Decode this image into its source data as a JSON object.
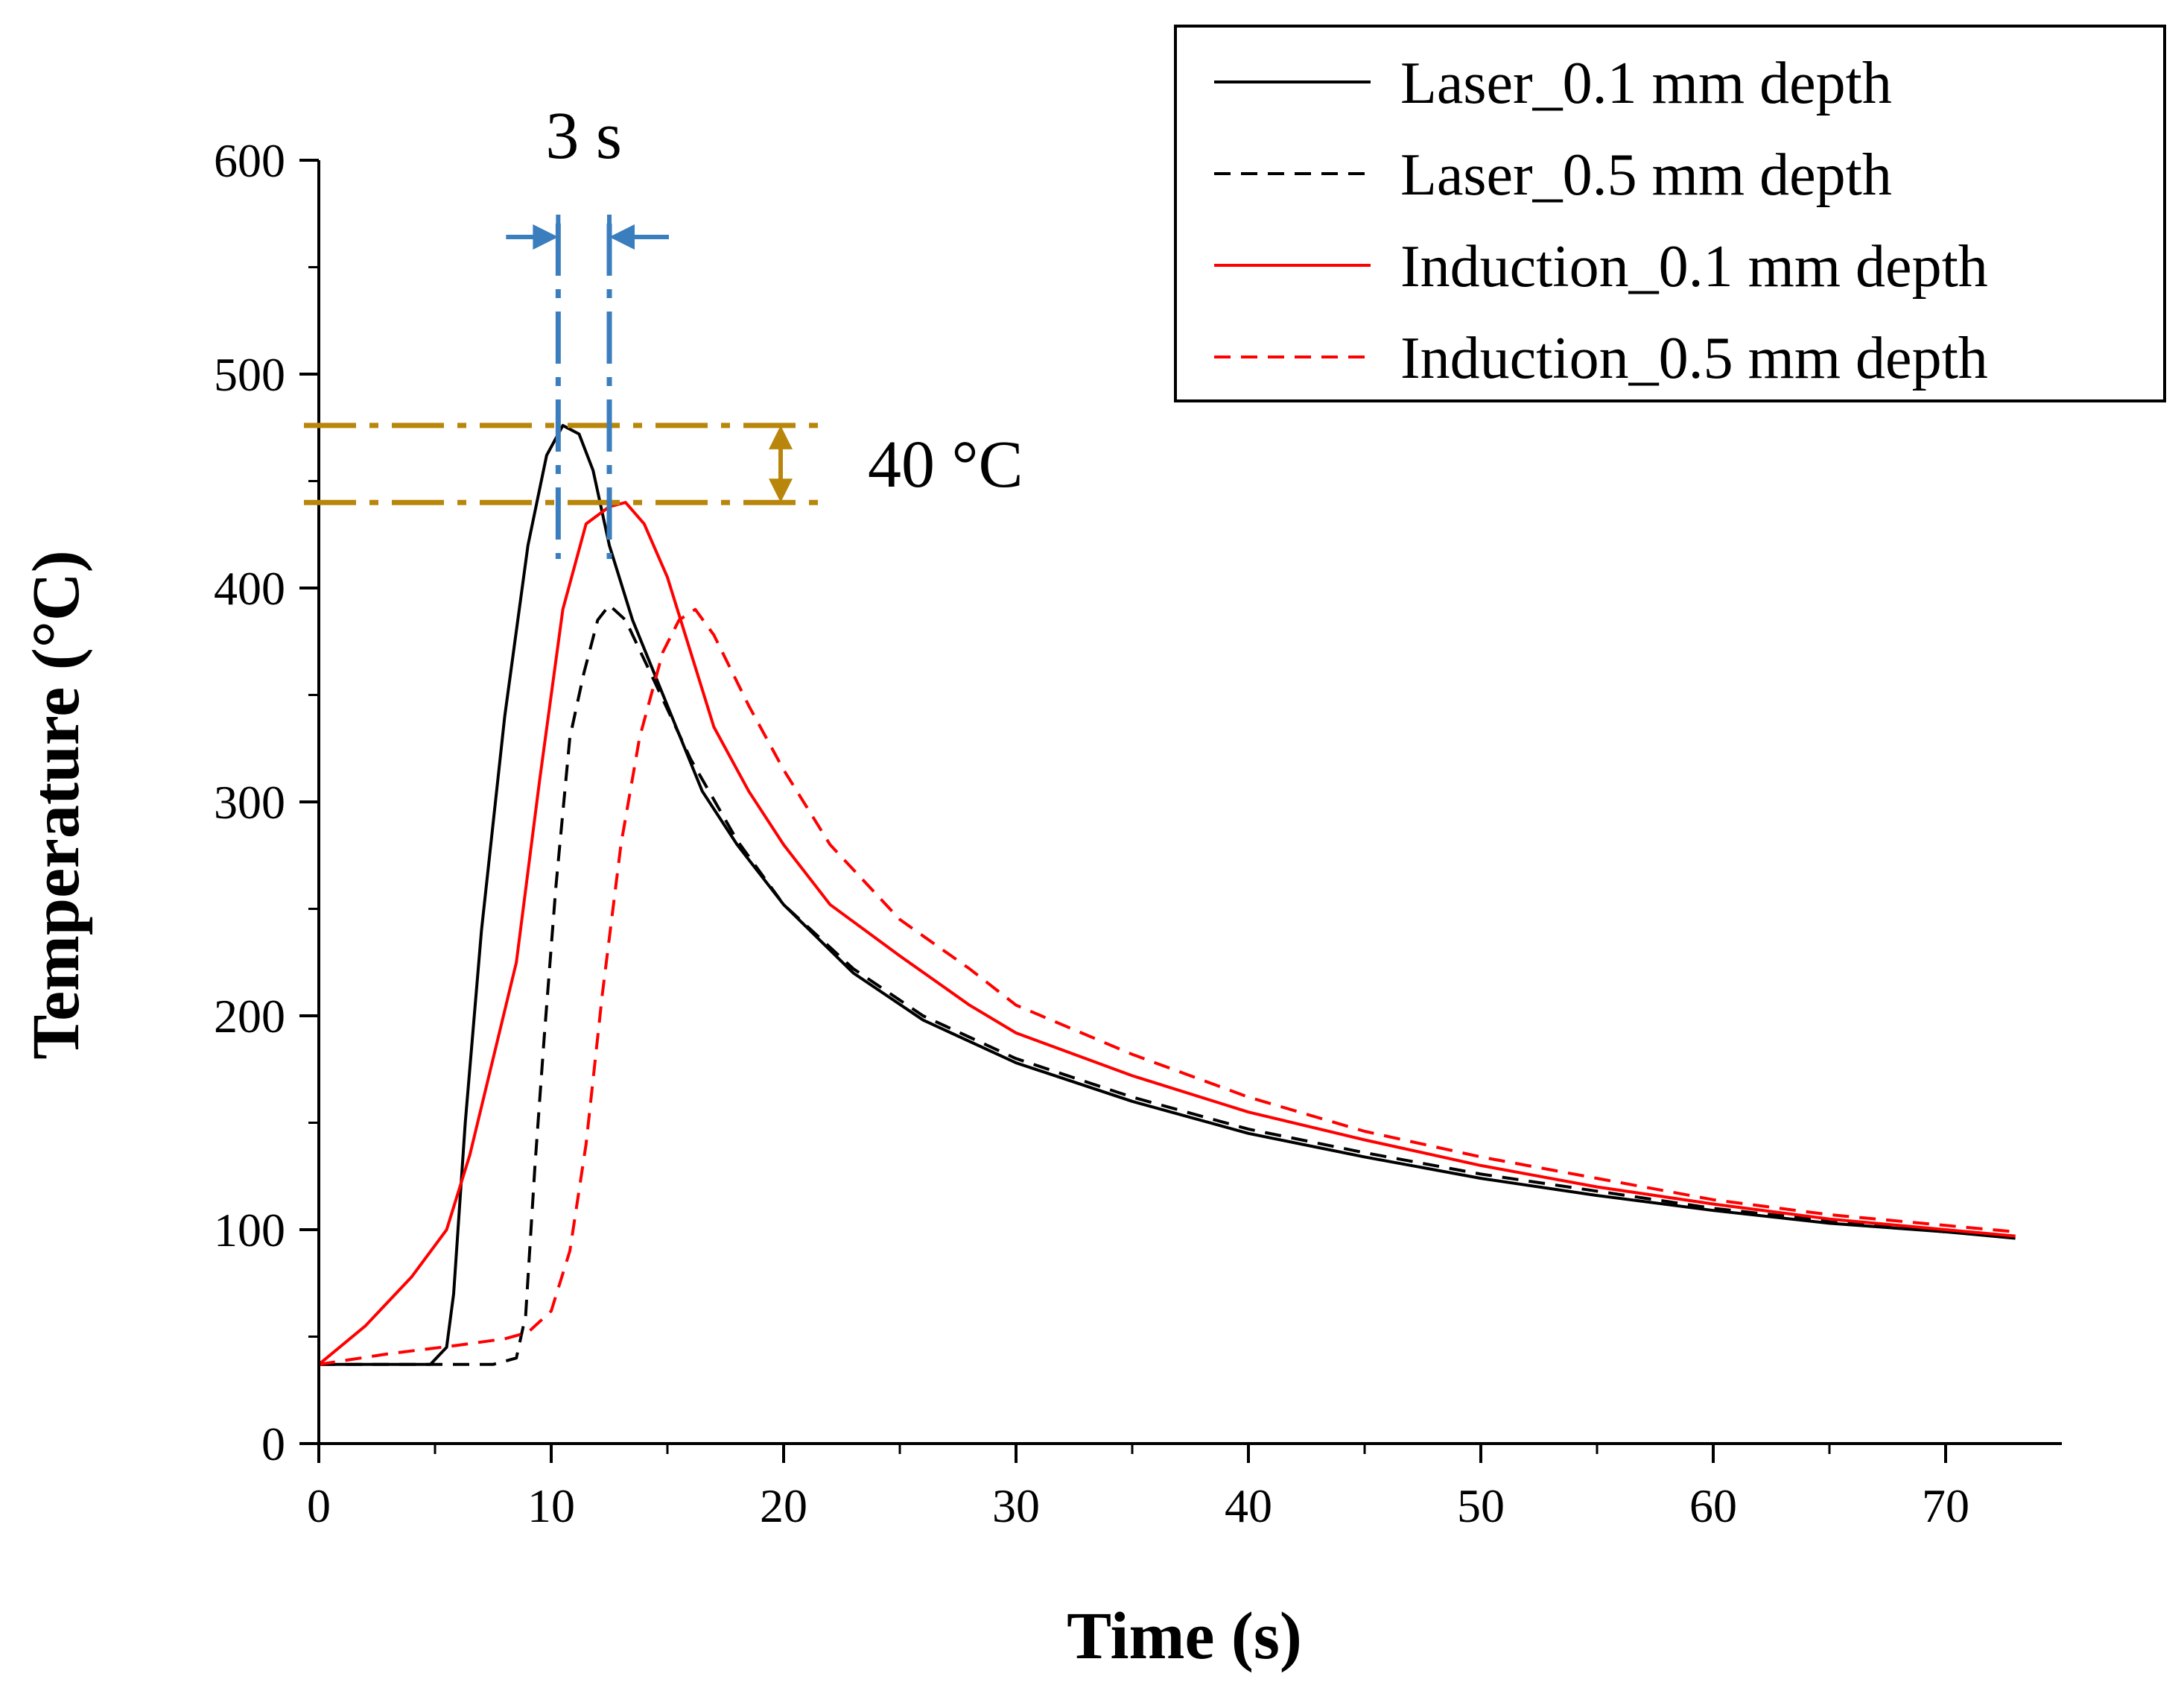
{
  "chart_data": {
    "type": "line",
    "title": "",
    "xlabel": "Time (s)",
    "ylabel": "Temperature (°C)",
    "xlim": [
      0,
      75
    ],
    "ylim": [
      0,
      600
    ],
    "xticks": [
      0,
      10,
      20,
      30,
      40,
      50,
      60,
      70
    ],
    "yticks": [
      0,
      100,
      200,
      300,
      400,
      500,
      600
    ],
    "grid": false,
    "legend_position": "top-right",
    "series": [
      {
        "name": "Laser_0.1 mm depth",
        "color": "#000000",
        "dash": "solid",
        "points": [
          [
            0,
            37
          ],
          [
            4.8,
            37
          ],
          [
            5.5,
            45
          ],
          [
            5.8,
            70
          ],
          [
            6.3,
            150
          ],
          [
            7,
            240
          ],
          [
            8,
            340
          ],
          [
            9,
            420
          ],
          [
            9.8,
            462
          ],
          [
            10.5,
            476
          ],
          [
            11.2,
            472
          ],
          [
            11.8,
            455
          ],
          [
            12.5,
            420
          ],
          [
            13.5,
            385
          ],
          [
            15,
            345
          ],
          [
            16.5,
            305
          ],
          [
            18,
            280
          ],
          [
            20,
            252
          ],
          [
            23,
            220
          ],
          [
            26,
            198
          ],
          [
            30,
            178
          ],
          [
            35,
            160
          ],
          [
            40,
            145
          ],
          [
            45,
            134
          ],
          [
            50,
            124
          ],
          [
            55,
            116
          ],
          [
            60,
            109
          ],
          [
            65,
            103
          ],
          [
            70,
            99
          ],
          [
            73,
            96
          ]
        ]
      },
      {
        "name": "Laser_0.5 mm depth",
        "color": "#000000",
        "dash": "dashed",
        "points": [
          [
            0,
            37
          ],
          [
            7.5,
            37
          ],
          [
            8.5,
            40
          ],
          [
            8.9,
            60
          ],
          [
            9.3,
            130
          ],
          [
            9.7,
            190
          ],
          [
            10.2,
            260
          ],
          [
            10.8,
            330
          ],
          [
            11.4,
            360
          ],
          [
            12,
            385
          ],
          [
            12.5,
            392
          ],
          [
            13.2,
            385
          ],
          [
            14.5,
            355
          ],
          [
            16,
            320
          ],
          [
            18,
            282
          ],
          [
            20,
            252
          ],
          [
            23,
            222
          ],
          [
            26,
            200
          ],
          [
            30,
            180
          ],
          [
            35,
            162
          ],
          [
            40,
            147
          ],
          [
            45,
            136
          ],
          [
            50,
            126
          ],
          [
            55,
            118
          ],
          [
            60,
            110
          ],
          [
            65,
            104
          ],
          [
            70,
            99
          ],
          [
            73,
            97
          ]
        ]
      },
      {
        "name": "Induction_0.1 mm depth",
        "color": "#ff0000",
        "dash": "solid",
        "points": [
          [
            0,
            37
          ],
          [
            2,
            55
          ],
          [
            4,
            78
          ],
          [
            5.5,
            100
          ],
          [
            6.5,
            135
          ],
          [
            7.5,
            180
          ],
          [
            8.5,
            225
          ],
          [
            9.5,
            310
          ],
          [
            10.5,
            390
          ],
          [
            11.5,
            430
          ],
          [
            12.5,
            438
          ],
          [
            13.2,
            440
          ],
          [
            14,
            430
          ],
          [
            15,
            405
          ],
          [
            16,
            370
          ],
          [
            17,
            335
          ],
          [
            18.5,
            305
          ],
          [
            20,
            280
          ],
          [
            22,
            252
          ],
          [
            25,
            228
          ],
          [
            28,
            205
          ],
          [
            30,
            192
          ],
          [
            35,
            172
          ],
          [
            40,
            155
          ],
          [
            45,
            142
          ],
          [
            50,
            130
          ],
          [
            55,
            120
          ],
          [
            60,
            112
          ],
          [
            65,
            105
          ],
          [
            70,
            100
          ],
          [
            73,
            97
          ]
        ]
      },
      {
        "name": "Induction_0.5 mm depth",
        "color": "#ff0000",
        "dash": "dashed",
        "points": [
          [
            0,
            37
          ],
          [
            3,
            42
          ],
          [
            6,
            46
          ],
          [
            8,
            49
          ],
          [
            9,
            52
          ],
          [
            10,
            62
          ],
          [
            10.8,
            90
          ],
          [
            11.5,
            140
          ],
          [
            12.2,
            210
          ],
          [
            13,
            280
          ],
          [
            13.8,
            330
          ],
          [
            14.8,
            370
          ],
          [
            15.5,
            385
          ],
          [
            16.2,
            390
          ],
          [
            17,
            378
          ],
          [
            18.5,
            345
          ],
          [
            20,
            315
          ],
          [
            22,
            280
          ],
          [
            25,
            245
          ],
          [
            28,
            222
          ],
          [
            30,
            205
          ],
          [
            35,
            182
          ],
          [
            40,
            162
          ],
          [
            45,
            146
          ],
          [
            50,
            134
          ],
          [
            55,
            124
          ],
          [
            60,
            114
          ],
          [
            65,
            107
          ],
          [
            70,
            102
          ],
          [
            73,
            99
          ]
        ]
      }
    ],
    "annotations": [
      {
        "label": "3 s",
        "type": "time-span",
        "from": 10.3,
        "to": 12.5
      },
      {
        "label": "40 °C",
        "type": "temperature-span",
        "from": 476,
        "to": 440
      }
    ]
  },
  "colors": {
    "time_annotation": "#3a7ebd",
    "temp_annotation": "#b8860b"
  }
}
